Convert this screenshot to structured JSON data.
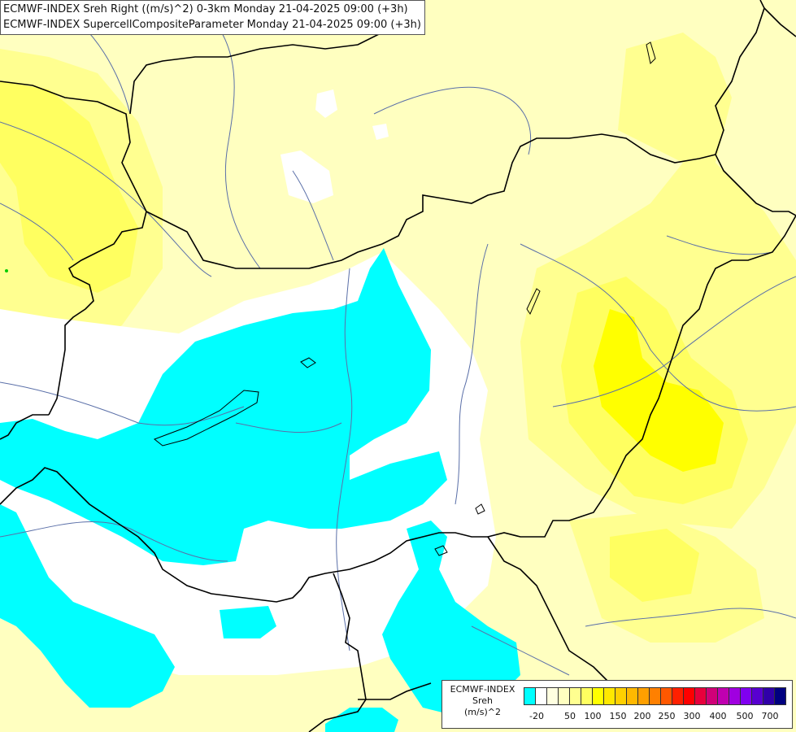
{
  "titles": {
    "line1": "ECMWF-INDEX Sreh Right ((m/s)^2) 0-3km Monday 21-04-2025 09:00 (+3h)",
    "line2": "ECMWF-INDEX SupercellCompositeParameter Monday 21-04-2025 09:00 (+3h)"
  },
  "legend": {
    "source": "ECMWF-INDEX",
    "field": "Sreh",
    "unit": "(m/s)^2",
    "colors": [
      "#00ffff",
      "#ffffff",
      "#ffffe0",
      "#ffffc0",
      "#ffff90",
      "#ffff60",
      "#ffff00",
      "#ffe800",
      "#ffd000",
      "#ffb800",
      "#ffa000",
      "#ff8000",
      "#ff5800",
      "#ff2000",
      "#ff0000",
      "#e8003c",
      "#d00078",
      "#c000b0",
      "#a000e0",
      "#8000f0",
      "#5800d0",
      "#3000a8",
      "#000080"
    ],
    "tick_labels": [
      "-20",
      "50",
      "100",
      "150",
      "200",
      "250",
      "300",
      "400",
      "500",
      "700"
    ]
  },
  "map_colors": {
    "cyan": "#00ffff",
    "pale_yellow": "#ffffc0",
    "light_yellow": "#ffff90",
    "yellow": "#ffff60",
    "bright_yellow": "#ffff00",
    "white": "#ffffff",
    "border": "#000000",
    "river": "#5a6fa8"
  }
}
